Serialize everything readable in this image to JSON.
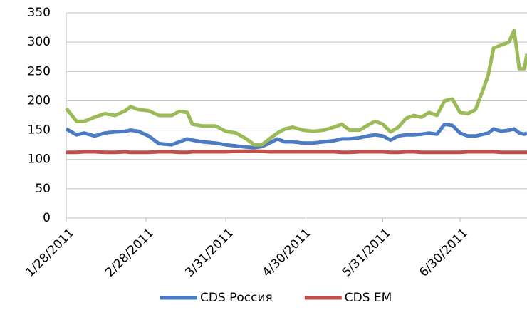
{
  "chart_data": {
    "type": "line",
    "x": [
      "2011-01-28",
      "2011-02-01",
      "2011-02-04",
      "2011-02-08",
      "2011-02-12",
      "2011-02-16",
      "2011-02-20",
      "2011-02-22",
      "2011-02-25",
      "2011-03-01",
      "2011-03-05",
      "2011-03-10",
      "2011-03-13",
      "2011-03-16",
      "2011-03-18",
      "2011-03-22",
      "2011-03-27",
      "2011-03-31",
      "2011-04-04",
      "2011-04-08",
      "2011-04-11",
      "2011-04-14",
      "2011-04-17",
      "2011-04-20",
      "2011-04-23",
      "2011-04-26",
      "2011-04-30",
      "2011-05-04",
      "2011-05-08",
      "2011-05-12",
      "2011-05-15",
      "2011-05-18",
      "2011-05-22",
      "2011-05-25",
      "2011-05-28",
      "2011-05-31",
      "2011-06-03",
      "2011-06-06",
      "2011-06-09",
      "2011-06-12",
      "2011-06-15",
      "2011-06-18",
      "2011-06-21",
      "2011-06-24",
      "2011-06-27",
      "2011-06-30",
      "2011-07-03",
      "2011-07-06",
      "2011-07-09",
      "2011-07-11",
      "2011-07-13",
      "2011-07-16",
      "2011-07-19",
      "2011-07-21",
      "2011-07-23",
      "2011-07-25",
      "2011-07-26"
    ],
    "series": [
      {
        "name": "CDS Россия",
        "color": "#4a7bc4",
        "values": [
          152,
          142,
          145,
          140,
          145,
          147,
          148,
          150,
          148,
          140,
          127,
          125,
          130,
          135,
          133,
          130,
          128,
          125,
          123,
          121,
          120,
          122,
          128,
          135,
          130,
          130,
          128,
          128,
          130,
          132,
          135,
          135,
          137,
          140,
          142,
          140,
          133,
          140,
          142,
          142,
          143,
          145,
          143,
          160,
          158,
          145,
          140,
          140,
          143,
          145,
          152,
          148,
          150,
          152,
          145,
          143,
          145
        ]
      },
      {
        "name": "CDS EM",
        "color": "#c0504d",
        "values": [
          112,
          112,
          113,
          113,
          112,
          112,
          113,
          112,
          112,
          112,
          113,
          113,
          112,
          112,
          113,
          113,
          113,
          113,
          114,
          114,
          114,
          114,
          113,
          113,
          113,
          113,
          113,
          113,
          113,
          113,
          112,
          112,
          113,
          113,
          113,
          113,
          112,
          112,
          113,
          113,
          112,
          112,
          112,
          112,
          112,
          112,
          113,
          113,
          113,
          113,
          113,
          112,
          112,
          112,
          112,
          112,
          112
        ]
      },
      {
        "color": "#9bbb59",
        "values": [
          187,
          165,
          165,
          172,
          178,
          175,
          183,
          190,
          185,
          183,
          175,
          175,
          182,
          180,
          160,
          157,
          157,
          148,
          145,
          135,
          125,
          125,
          135,
          145,
          152,
          155,
          150,
          148,
          150,
          155,
          160,
          150,
          150,
          158,
          165,
          160,
          147,
          155,
          170,
          175,
          172,
          180,
          175,
          200,
          203,
          180,
          178,
          185,
          220,
          245,
          290,
          295,
          300,
          320,
          255,
          255,
          280
        ]
      }
    ],
    "xlim": [
      "2011-01-28",
      "2011-07-26"
    ],
    "xticks": [
      {
        "value": "2011-01-28",
        "label": "1/28/2011"
      },
      {
        "value": "2011-02-28",
        "label": "2/28/2011"
      },
      {
        "value": "2011-03-31",
        "label": "3/31/2011"
      },
      {
        "value": "2011-04-30",
        "label": "4/30/2011"
      },
      {
        "value": "2011-05-31",
        "label": "5/31/2011"
      },
      {
        "value": "2011-06-30",
        "label": "6/30/2011"
      }
    ],
    "ylim": [
      0,
      350
    ],
    "yticks": [
      0,
      50,
      100,
      150,
      200,
      250,
      300,
      350
    ],
    "grid": true
  }
}
